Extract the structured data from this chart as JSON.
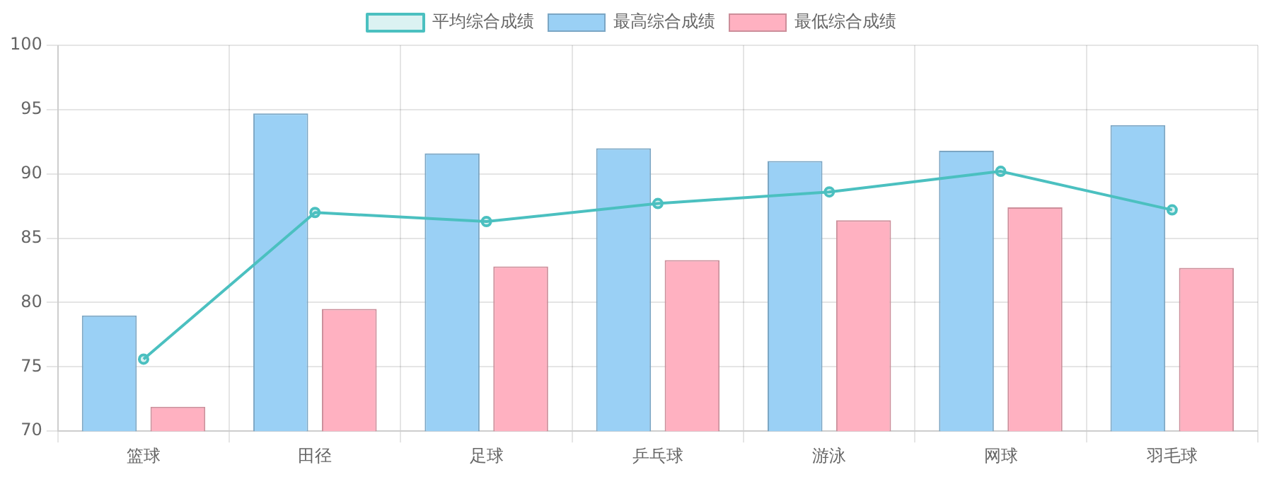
{
  "chart_data": {
    "type": "bar",
    "categories": [
      "篮球",
      "田径",
      "足球",
      "乒乓球",
      "游泳",
      "网球",
      "羽毛球"
    ],
    "series": [
      {
        "name": "最高综合成绩",
        "color": "#9ad0f5",
        "values": [
          79.0,
          94.7,
          91.6,
          92.0,
          91.0,
          91.8,
          93.8
        ]
      },
      {
        "name": "最低综合成绩",
        "color": "#ffb1c1",
        "values": [
          71.9,
          79.5,
          82.8,
          83.3,
          86.4,
          87.4,
          82.7
        ]
      },
      {
        "name": "平均综合成绩",
        "type": "line",
        "color": "#4bc0c0",
        "marker": "circle",
        "values": [
          75.6,
          87.0,
          86.3,
          87.7,
          88.6,
          90.2,
          87.2
        ]
      }
    ],
    "ylim": [
      70,
      100
    ],
    "yticks": [
      70,
      75,
      80,
      85,
      90,
      95,
      100
    ],
    "grid": true,
    "legend": "top"
  }
}
